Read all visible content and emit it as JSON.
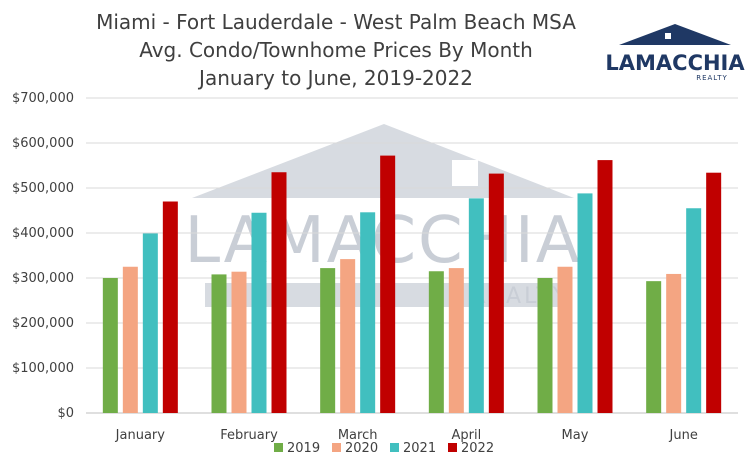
{
  "brand": {
    "name": "LAMACCHIA",
    "sub": "REALTY",
    "navy": "#1f3864",
    "watermark_color": "#c9ced6"
  },
  "chart_data": {
    "type": "bar",
    "title": [
      "Miami - Fort Lauderdale - West Palm Beach MSA",
      "Avg. Condo/Townhome Prices By Month",
      "January to June, 2019-2022"
    ],
    "categories": [
      "January",
      "February",
      "March",
      "April",
      "May",
      "June"
    ],
    "series": [
      {
        "name": "2019",
        "color": "#70ad47",
        "values": [
          300000,
          308000,
          322000,
          315000,
          300000,
          293000
        ]
      },
      {
        "name": "2020",
        "color": "#f4a582",
        "values": [
          325000,
          314000,
          342000,
          322000,
          325000,
          309000
        ]
      },
      {
        "name": "2021",
        "color": "#41bfbf",
        "values": [
          399000,
          445000,
          446000,
          477000,
          488000,
          455000
        ]
      },
      {
        "name": "2022",
        "color": "#c00000",
        "values": [
          470000,
          535000,
          572000,
          532000,
          562000,
          534000
        ]
      }
    ],
    "y_ticks": [
      "$0",
      "$100,000",
      "$200,000",
      "$300,000",
      "$400,000",
      "$500,000",
      "$600,000",
      "$700,000"
    ],
    "ylim": [
      0,
      700000
    ],
    "grid": true,
    "legend_position": "bottom"
  }
}
